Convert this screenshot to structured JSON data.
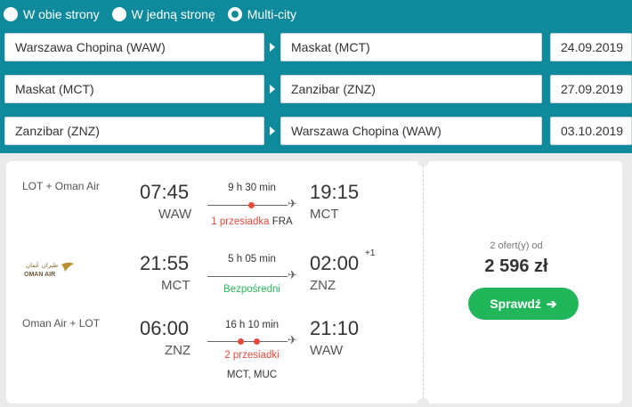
{
  "trip_types": [
    {
      "label": "W obie strony",
      "selected": false
    },
    {
      "label": "W jedną stronę",
      "selected": false
    },
    {
      "label": "Multi-city",
      "selected": true
    }
  ],
  "legs": [
    {
      "from": "Warszawa Chopina (WAW)",
      "to": "Maskat (MCT)",
      "date": "24.09.2019"
    },
    {
      "from": "Maskat (MCT)",
      "to": "Zanzibar (ZNZ)",
      "date": "27.09.2019"
    },
    {
      "from": "Zanzibar (ZNZ)",
      "to": "Warszawa Chopina (WAW)",
      "date": "03.10.2019"
    }
  ],
  "result": {
    "flights": [
      {
        "airline": "LOT + Oman Air",
        "dep_time": "07:45",
        "dep_airport": "WAW",
        "duration": "9 h 30 min",
        "stops_text": "1 przesiadka",
        "stop_city": "FRA",
        "arr_time": "19:15",
        "arr_airport": "MCT"
      },
      {
        "airline_logo": "oman-air-logo",
        "logo_text": "OMAN AIR",
        "dep_time": "21:55",
        "dep_airport": "MCT",
        "duration": "5 h 05 min",
        "stops_text": "Bezpośredni",
        "arr_time": "02:00",
        "arr_day_offset": "+1",
        "arr_airport": "ZNZ"
      },
      {
        "airline": "Oman Air + LOT",
        "dep_time": "06:00",
        "dep_airport": "ZNZ",
        "duration": "16 h 10 min",
        "stops_text": "2 przesiadki",
        "stop_cities": "MCT, MUC",
        "arr_time": "21:10",
        "arr_airport": "WAW"
      }
    ],
    "offers_count": "2 ofert(y) od",
    "price": "2 596 zł",
    "check_label": "Sprawdź",
    "check_icon": "arrow-right-icon"
  },
  "colors": {
    "brand": "#0e8a9c",
    "accent_green": "#21b65a",
    "stop_red": "#e64a3b"
  }
}
